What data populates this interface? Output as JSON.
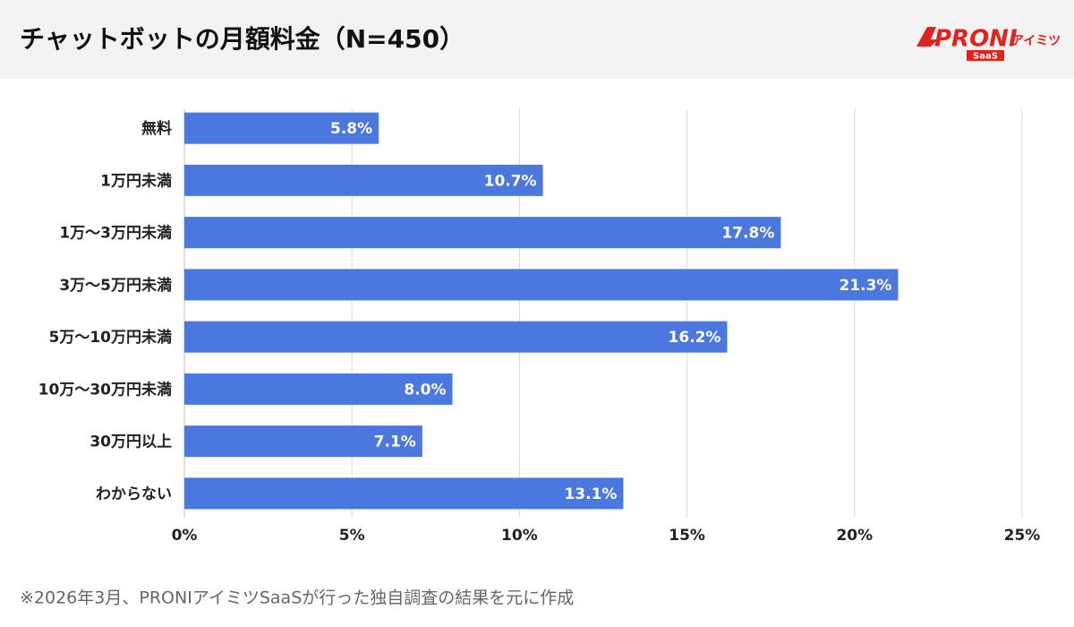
{
  "logo": {
    "brand": "PRONI",
    "suffix": "アイミツ",
    "badge": "SaaS"
  },
  "chart_data": {
    "type": "barh",
    "title": "チャットボットの月額料金（N=450）",
    "categories": [
      "無料",
      "1万円未満",
      "1万〜3万円未満",
      "3万〜5万円未満",
      "5万〜10万円未満",
      "10万〜30万円未満",
      "30万円以上",
      "わからない"
    ],
    "values": [
      5.8,
      10.7,
      17.8,
      21.3,
      16.2,
      8.0,
      7.1,
      13.1
    ],
    "value_labels": [
      "5.8%",
      "10.7%",
      "17.8%",
      "21.3%",
      "16.2%",
      "8.0%",
      "7.1%",
      "13.1%"
    ],
    "color": "#4a78de",
    "xlim": [
      0,
      25
    ],
    "xticks": [
      {
        "value": 0,
        "label": "0%"
      },
      {
        "value": 5,
        "label": "5%"
      },
      {
        "value": 10,
        "label": "10%"
      },
      {
        "value": 15,
        "label": "15%"
      },
      {
        "value": 20,
        "label": "20%"
      },
      {
        "value": 25,
        "label": "25%"
      }
    ],
    "grid": true,
    "source": "※2026年3月、PRONIアイミツSaaSが行った独自調査の結果を元に作成"
  }
}
